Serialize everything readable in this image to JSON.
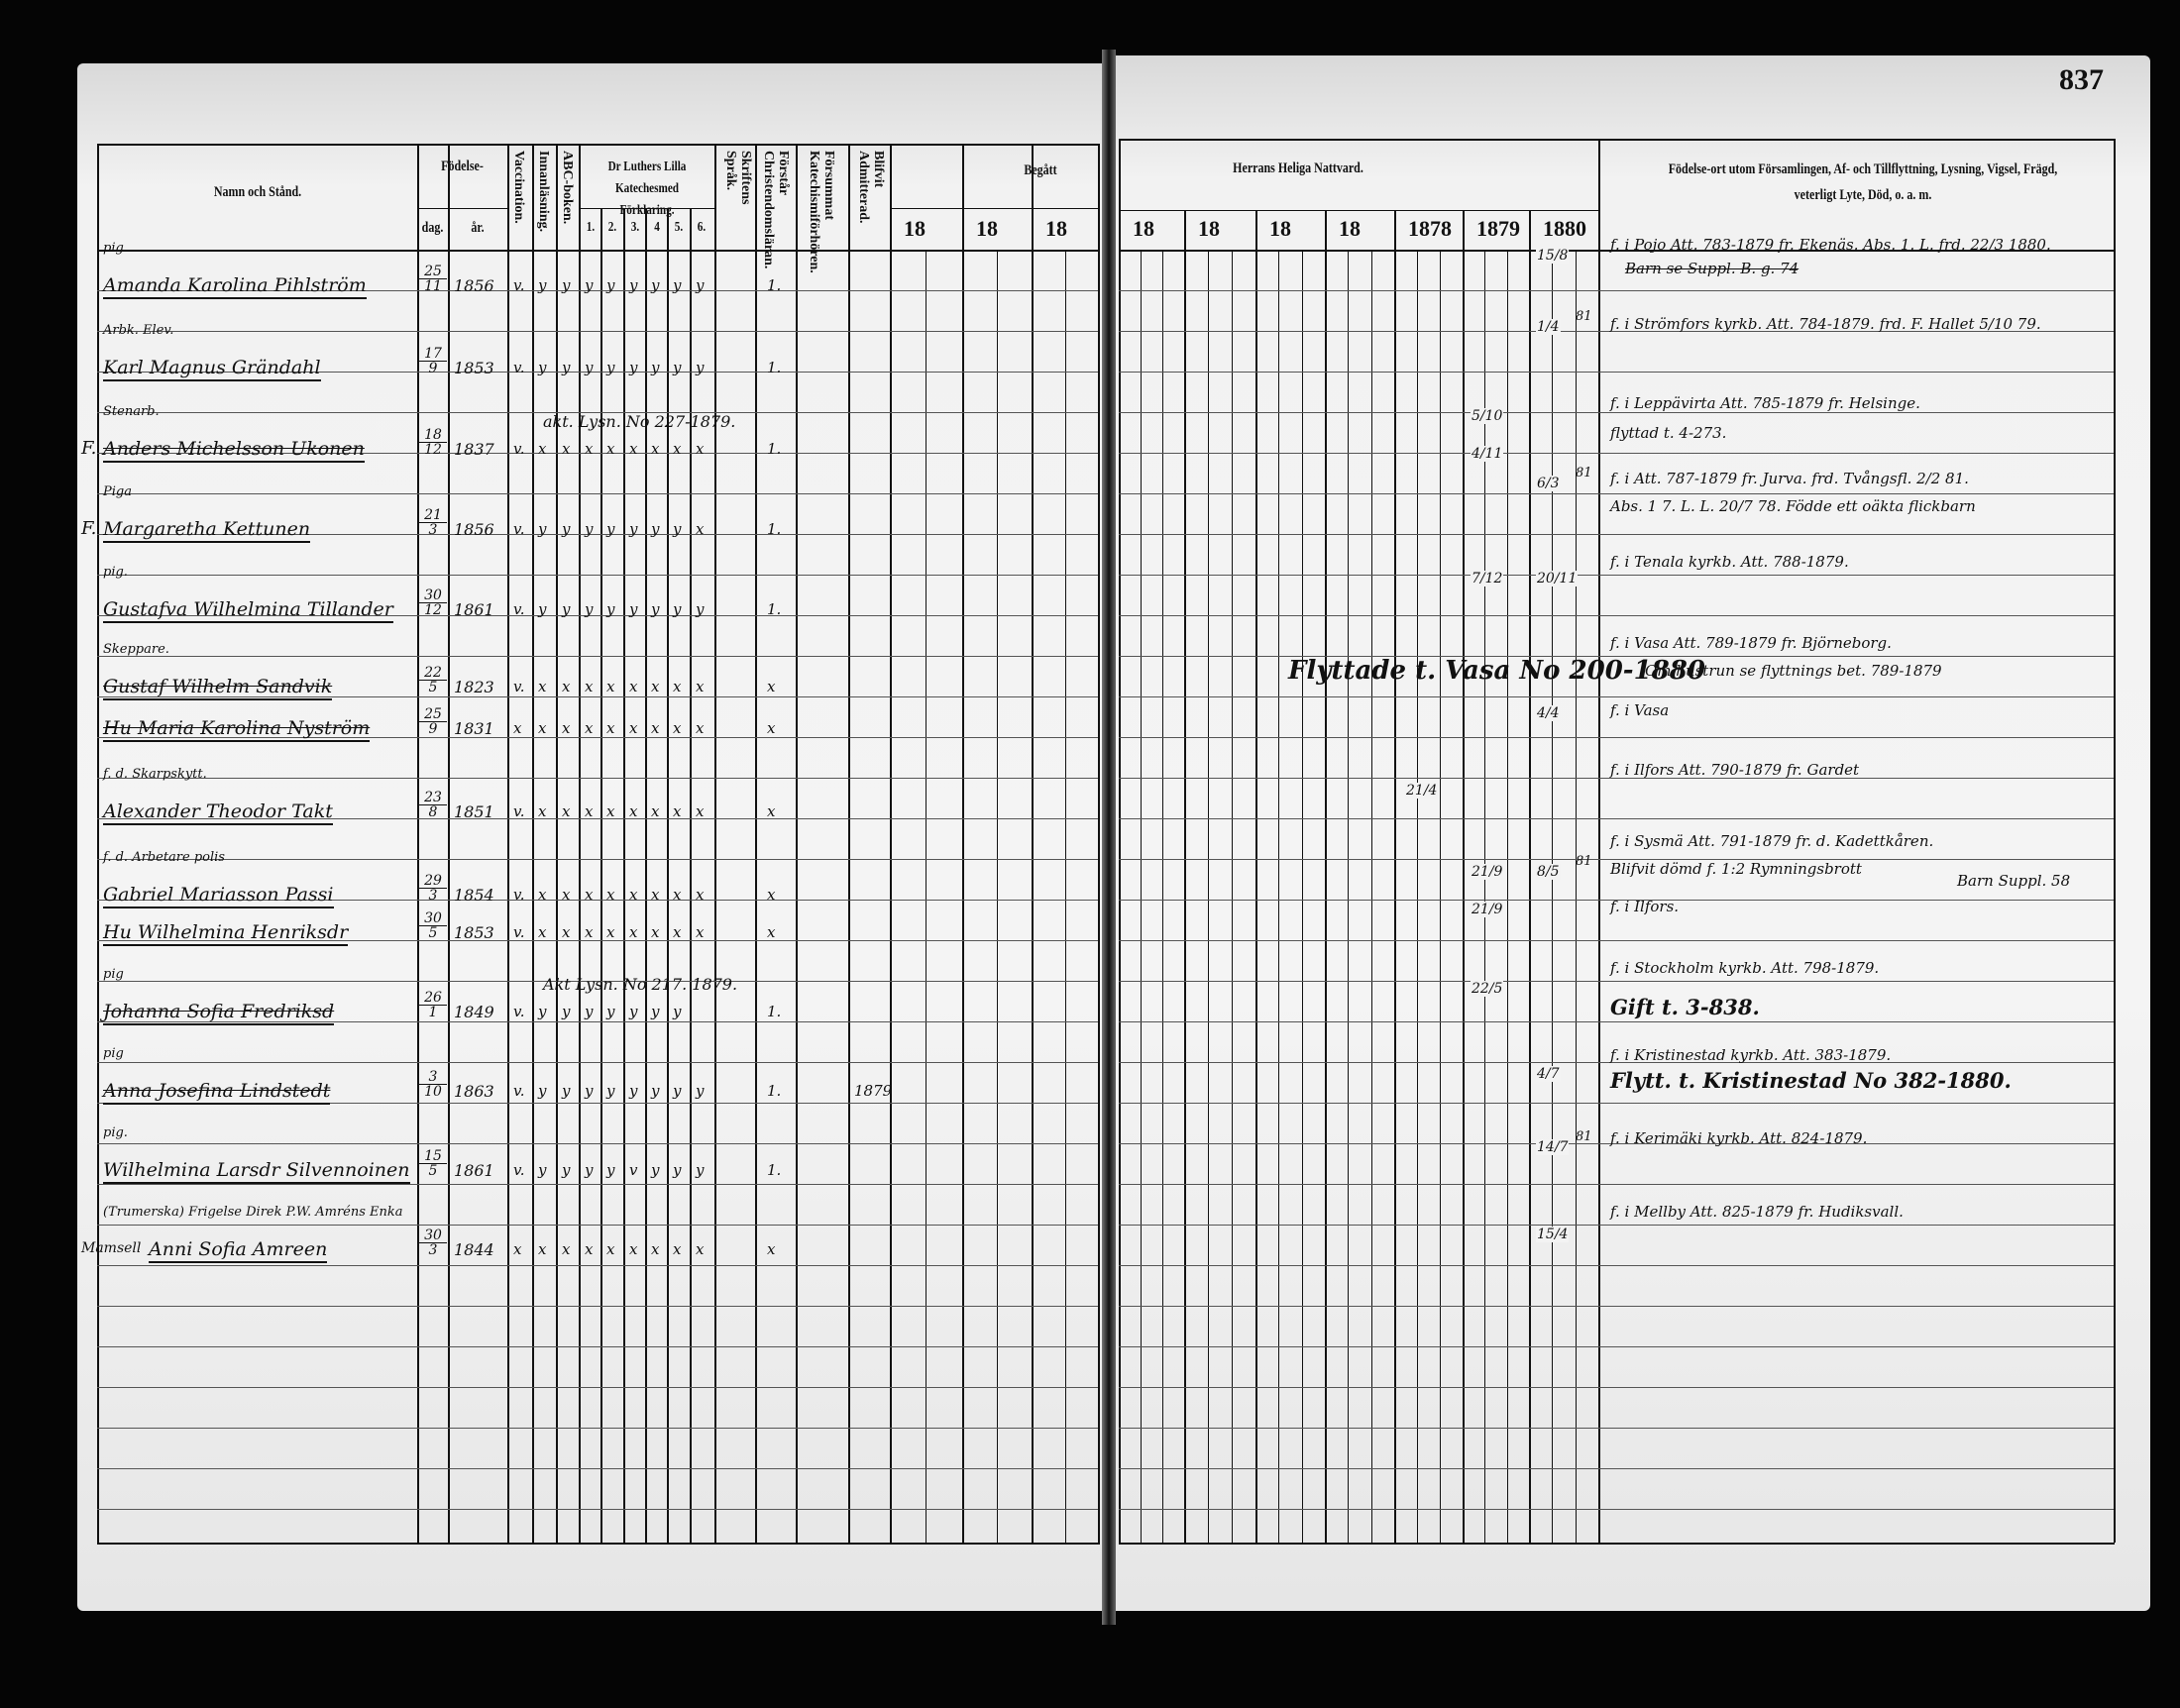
{
  "page_number": "837",
  "left_headers": {
    "name": "Namn och Stånd.",
    "birth": "Födelse-",
    "birth_day": "dag.",
    "birth_year": "år.",
    "vaccination": "Vaccination.",
    "innanlasning": "Innanläsning.",
    "abc": "ABC-boken.",
    "catechism": "Dr Luthers Lilla Katechesmed Förklaring.",
    "catechism_parts": [
      "1.",
      "2.",
      "3.",
      "4",
      "5.",
      "6."
    ],
    "skrift": "Skriftens Språk.",
    "forstar": "Förstår Christendomsläran.",
    "forsummat": "Försummat Katechismiförhören.",
    "admitterad": "Blifvit Admitterad.",
    "begatt": "Begått",
    "years": [
      "18",
      "18",
      "18"
    ]
  },
  "right_headers": {
    "communion": "Herrans Heliga Nattvard.",
    "years": [
      "18",
      "18",
      "18",
      "18",
      "1878",
      "1879",
      "1880"
    ],
    "remarks": "Födelse-ort utom Församlingen, Af- och Tillflyttning, Lysning, Vigsel, Frägd, veterligt Lyte, Död, o. a. m."
  },
  "records": [
    {
      "title": "pig",
      "name": "Amanda Karolina Pihlström",
      "day": "25",
      "month": "11",
      "year": "1856",
      "vacc": "v.",
      "marks": "y y y y y y y y",
      "forstar": "1.",
      "struck": false
    },
    {
      "title": "Arbk. Elev.",
      "name": "Karl Magnus Grändahl",
      "day": "17",
      "month": "9",
      "year": "1853",
      "vacc": "v.",
      "marks": "y y y y y y y y",
      "forstar": "1.",
      "struck": false
    },
    {
      "prefix": "F.",
      "title": "Stenarb.",
      "name": "Anders Michelsson Ukonen",
      "day": "18",
      "month": "12",
      "year": "1837",
      "vacc": "v.",
      "marks": "x x x x x x x x",
      "forstar": "1.",
      "note": "akt. Lysn. No 227-1879.",
      "struck": true
    },
    {
      "prefix": "F.",
      "title": "Piga",
      "name": "Margaretha Kettunen",
      "day": "21",
      "month": "3",
      "year": "1856",
      "vacc": "v.",
      "marks": "y y y y y y y x",
      "forstar": "1.",
      "struck": false
    },
    {
      "title": "pig.",
      "name": "Gustafva Wilhelmina Tillander",
      "day": "30",
      "month": "12",
      "year": "1861",
      "vacc": "v.",
      "marks": "y y y y y y y y",
      "forstar": "1.",
      "struck": false
    },
    {
      "title": "Skeppare.",
      "name": "Gustaf Wilhelm Sandvik",
      "day": "22",
      "month": "5",
      "year": "1823",
      "vacc": "v.",
      "marks": "x x x x x x x x",
      "forstar": "x",
      "struck": true
    },
    {
      "title": "",
      "name": "Hu Maria Karolina Nyström",
      "day": "25",
      "month": "9",
      "year": "1831",
      "vacc": "x",
      "marks": "x x x x x x x x",
      "forstar": "x",
      "struck": true
    },
    {
      "title": "f. d. Skarpskytt.",
      "name": "Alexander Theodor Takt",
      "day": "23",
      "month": "8",
      "year": "1851",
      "vacc": "v.",
      "marks": "x x x x x x x x",
      "forstar": "x",
      "struck": false
    },
    {
      "title": "f. d. Arbetare polis",
      "name": "Gabriel Mariasson Passi",
      "day": "29",
      "month": "3",
      "year": "1854",
      "vacc": "v.",
      "marks": "x x x x x x x x",
      "forstar": "x",
      "struck": false
    },
    {
      "title": "",
      "name": "Hu Wilhelmina Henriksdr",
      "day": "30",
      "month": "5",
      "year": "1853",
      "vacc": "v.",
      "marks": "x x x x x x x x",
      "forstar": "x",
      "struck": false
    },
    {
      "title": "pig",
      "name": "Johanna Sofia Fredriksd",
      "day": "26",
      "month": "1",
      "year": "1849",
      "vacc": "v.",
      "marks": "y y y y y y y",
      "forstar": "1.",
      "note": "Akt Lysn. No 217. 1879.",
      "struck": true
    },
    {
      "title": "pig",
      "name": "Anna Josefina Lindstedt",
      "day": "3",
      "month": "10",
      "year": "1863",
      "vacc": "v.",
      "marks": "y y y y y y y y",
      "forstar": "1.",
      "admitted": "1879",
      "struck": true
    },
    {
      "title": "pig.",
      "name": "Wilhelmina Larsdr Silvennoinen",
      "day": "15",
      "month": "5",
      "year": "1861",
      "vacc": "v.",
      "marks": "y y y y v y y y",
      "forstar": "1.",
      "struck": false
    },
    {
      "title": "(Trumerska) Frigelse Direk P.W. Amréns Enka",
      "prefix": "Mamsell",
      "name": "Anni Sofia Amreen",
      "day": "30",
      "month": "3",
      "year": "1844",
      "vacc": "x",
      "marks": "x x x x x x x x",
      "forstar": "x",
      "struck": false
    }
  ],
  "communion": [
    {
      "col": "1880",
      "date": "15/8"
    },
    {
      "col": "1880",
      "date": "1/4",
      "sup": "81"
    },
    {
      "col": "1879",
      "date": "5/10"
    },
    {
      "col": "1879",
      "date": "4/11"
    },
    {
      "col": "1880",
      "date": "6/3",
      "sup": "81"
    },
    {
      "col": "1879",
      "date": "7/12"
    },
    {
      "col": "1880",
      "date": "20/11"
    },
    {
      "col": "1880",
      "date": "4/4"
    },
    {
      "col": "1878",
      "date": "21/4"
    },
    {
      "col": "1879",
      "date": "21/9"
    },
    {
      "col": "1880",
      "date": "8/5",
      "sup": "81"
    },
    {
      "col": "1879",
      "date": "21/9"
    },
    {
      "col": "1879",
      "date": "22/5"
    },
    {
      "col": "1880",
      "date": "4/7"
    },
    {
      "col": "1880",
      "date": "14/7",
      "sup": "81"
    },
    {
      "col": "1880",
      "date": "15/4"
    }
  ],
  "moved_note": "Flyttade t. Vasa No 200-1880",
  "remarks": [
    "f. i Pojo Att. 783-1879 fr. Ekenäs. Abs. 1. L. frd. 22/3 1880.",
    "Barn se Suppl. B. g. 74",
    "f. i Strömfors kyrkb. Att. 784-1879. frd. F. Hallet 5/10 79.",
    "f. i Leppävirta Att. 785-1879 fr. Helsinge.",
    "flyttad t. 4-273.",
    "f. i Att. 787-1879 fr. Jurva. frd. Tvångsfl. 2/2 81.",
    "Abs. 1 7. L. L. 20/7 78. Födde ett oäkta flickbarn",
    "f. i Tenala kyrkb. Att. 788-1879.",
    "f. i Vasa Att. 789-1879 fr. Björneborg.",
    "Om hustrun se flyttnings bet. 789-1879",
    "f. i Vasa",
    "f. i Ilfors Att. 790-1879 fr. Gardet",
    "f. i Sysmä Att. 791-1879 fr. d. Kadettkåren.",
    "Blifvit dömd f. 1:2 Rymningsbrott",
    "Barn Suppl. 58",
    "f. i Ilfors.",
    "f. i Stockholm kyrkb. Att. 798-1879.",
    "Gift t. 3-838.",
    "f. i Kristinestad kyrkb. Att. 383-1879.",
    "Flytt. t. Kristinestad No 382-1880.",
    "f. i Kerimäki kyrkb. Att. 824-1879.",
    "f. i Mellby Att. 825-1879 fr. Hudiksvall."
  ]
}
